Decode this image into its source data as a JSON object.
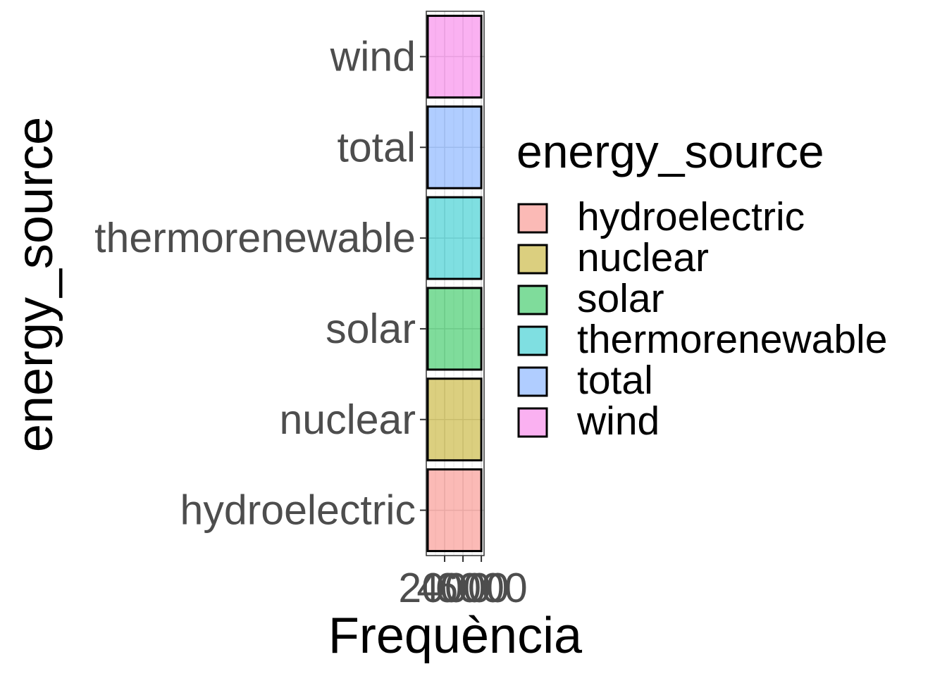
{
  "chart_data": {
    "type": "bar",
    "orientation": "horizontal",
    "categories": [
      "hydroelectric",
      "nuclear",
      "solar",
      "thermorenewable",
      "total",
      "wind"
    ],
    "values": [
      6000,
      6000,
      6000,
      6000,
      6000,
      6000
    ],
    "colors": [
      "#F8766D",
      "#B79F00",
      "#00BA38",
      "#00BFC4",
      "#619CFF",
      "#F564E3"
    ],
    "xlabel": "Frequència",
    "ylabel": "energy_source",
    "x_ticks": [
      "2000",
      "4000",
      "6000"
    ],
    "x_tick_values": [
      2000,
      4000,
      6000
    ],
    "xlim": [
      0,
      6300
    ],
    "legend": {
      "title": "energy_source",
      "position": "right",
      "items": [
        "hydroelectric",
        "nuclear",
        "solar",
        "thermorenewable",
        "total",
        "wind"
      ]
    },
    "grid": true,
    "bar_opacity": 0.5
  }
}
